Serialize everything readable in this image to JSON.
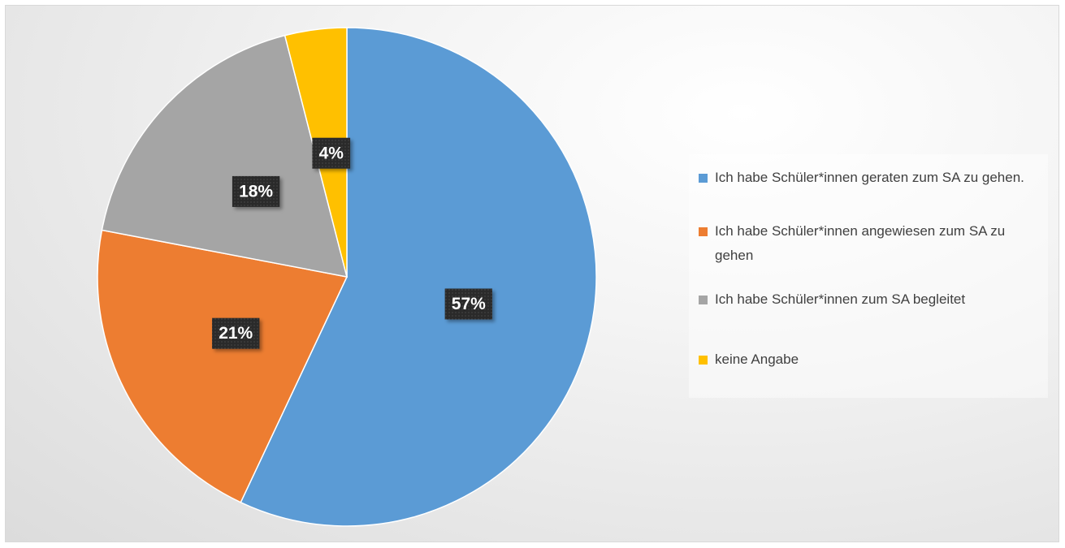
{
  "chart_data": {
    "type": "pie",
    "categories": [
      "Ich habe Schüler*innen geraten zum SA zu gehen.",
      "Ich habe Schüler*innen angewiesen zum SA zu gehen",
      "Ich habe Schüler*innen zum SA begleitet",
      "keine Angabe"
    ],
    "values": [
      57,
      21,
      18,
      4
    ],
    "value_labels": [
      "57%",
      "21%",
      "18%",
      "4%"
    ],
    "colors": [
      "#5b9bd5",
      "#ed7d31",
      "#a5a5a5",
      "#ffc000"
    ],
    "legend": "right"
  }
}
